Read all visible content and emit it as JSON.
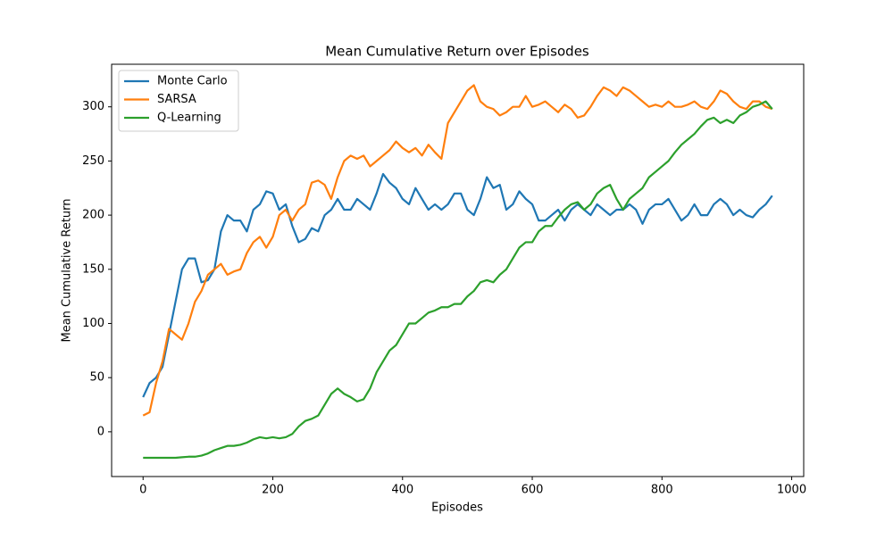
{
  "chart_data": {
    "type": "line",
    "title": "Mean Cumulative Return over Episodes",
    "x_label": "Episodes",
    "y_label": "Mean Cumulative Return",
    "x": [
      0,
      10,
      20,
      30,
      40,
      50,
      60,
      70,
      80,
      90,
      100,
      110,
      120,
      130,
      140,
      150,
      160,
      170,
      180,
      190,
      200,
      210,
      220,
      230,
      240,
      250,
      260,
      270,
      280,
      290,
      300,
      310,
      320,
      330,
      340,
      350,
      360,
      370,
      380,
      390,
      400,
      410,
      420,
      430,
      440,
      450,
      460,
      470,
      480,
      490,
      500,
      510,
      520,
      530,
      540,
      550,
      560,
      570,
      580,
      590,
      600,
      610,
      620,
      630,
      640,
      650,
      660,
      670,
      680,
      690,
      700,
      710,
      720,
      730,
      740,
      750,
      760,
      770,
      780,
      790,
      800,
      810,
      820,
      830,
      840,
      850,
      860,
      870,
      880,
      890,
      900,
      910,
      920,
      930,
      940,
      950,
      960,
      970
    ],
    "series": [
      {
        "name": "Monte Carlo",
        "color": "#1f77b4",
        "values": [
          32,
          45,
          50,
          60,
          90,
          120,
          150,
          160,
          160,
          138,
          140,
          150,
          185,
          200,
          195,
          195,
          185,
          205,
          210,
          222,
          220,
          205,
          210,
          190,
          175,
          178,
          188,
          185,
          200,
          205,
          215,
          205,
          205,
          215,
          210,
          205,
          220,
          238,
          230,
          225,
          215,
          210,
          225,
          215,
          205,
          210,
          205,
          210,
          220,
          220,
          205,
          200,
          215,
          235,
          225,
          228,
          205,
          210,
          222,
          215,
          210,
          195,
          195,
          200,
          205,
          195,
          205,
          210,
          205,
          200,
          210,
          205,
          200,
          205,
          205,
          210,
          205,
          192,
          205,
          210,
          210,
          215,
          205,
          195,
          200,
          210,
          200,
          200,
          210,
          215,
          210,
          200,
          205,
          200,
          198,
          205,
          210,
          218
        ]
      },
      {
        "name": "SARSA",
        "color": "#ff7f0e",
        "values": [
          15,
          18,
          45,
          65,
          95,
          90,
          85,
          100,
          120,
          130,
          145,
          150,
          155,
          145,
          148,
          150,
          165,
          175,
          180,
          170,
          180,
          200,
          205,
          195,
          205,
          210,
          230,
          232,
          228,
          215,
          235,
          250,
          255,
          252,
          255,
          245,
          250,
          255,
          260,
          268,
          262,
          258,
          262,
          255,
          265,
          258,
          252,
          285,
          295,
          305,
          315,
          320,
          305,
          300,
          298,
          292,
          295,
          300,
          300,
          310,
          300,
          302,
          305,
          300,
          295,
          302,
          298,
          290,
          292,
          300,
          310,
          318,
          315,
          310,
          318,
          315,
          310,
          305,
          300,
          302,
          300,
          305,
          300,
          300,
          302,
          305,
          300,
          298,
          305,
          315,
          312,
          305,
          300,
          298,
          305,
          305,
          300,
          298
        ]
      },
      {
        "name": "Q-Learning",
        "color": "#2ca02c",
        "values": [
          -24,
          -24,
          -24,
          -24,
          -24,
          -24,
          -23.5,
          -23,
          -23,
          -22,
          -20,
          -17,
          -15,
          -13,
          -13,
          -12,
          -10,
          -7,
          -5,
          -6,
          -5,
          -6,
          -5,
          -2,
          5,
          10,
          12,
          15,
          25,
          35,
          40,
          35,
          32,
          28,
          30,
          40,
          55,
          65,
          75,
          80,
          90,
          100,
          100,
          105,
          110,
          112,
          115,
          115,
          118,
          118,
          125,
          130,
          138,
          140,
          138,
          145,
          150,
          160,
          170,
          175,
          175,
          185,
          190,
          190,
          198,
          205,
          210,
          212,
          205,
          210,
          220,
          225,
          228,
          215,
          205,
          215,
          220,
          225,
          235,
          240,
          245,
          250,
          258,
          265,
          270,
          275,
          282,
          288,
          290,
          285,
          288,
          285,
          292,
          295,
          300,
          302,
          305,
          298
        ]
      }
    ],
    "xlim": [
      -48.5,
      1018.5
    ],
    "xticks": [
      0,
      200,
      400,
      600,
      800,
      1000
    ],
    "ylim": [
      -41.3,
      339.3
    ],
    "yticks": [
      0,
      50,
      100,
      150,
      200,
      250,
      300
    ],
    "legend": "upper left"
  }
}
